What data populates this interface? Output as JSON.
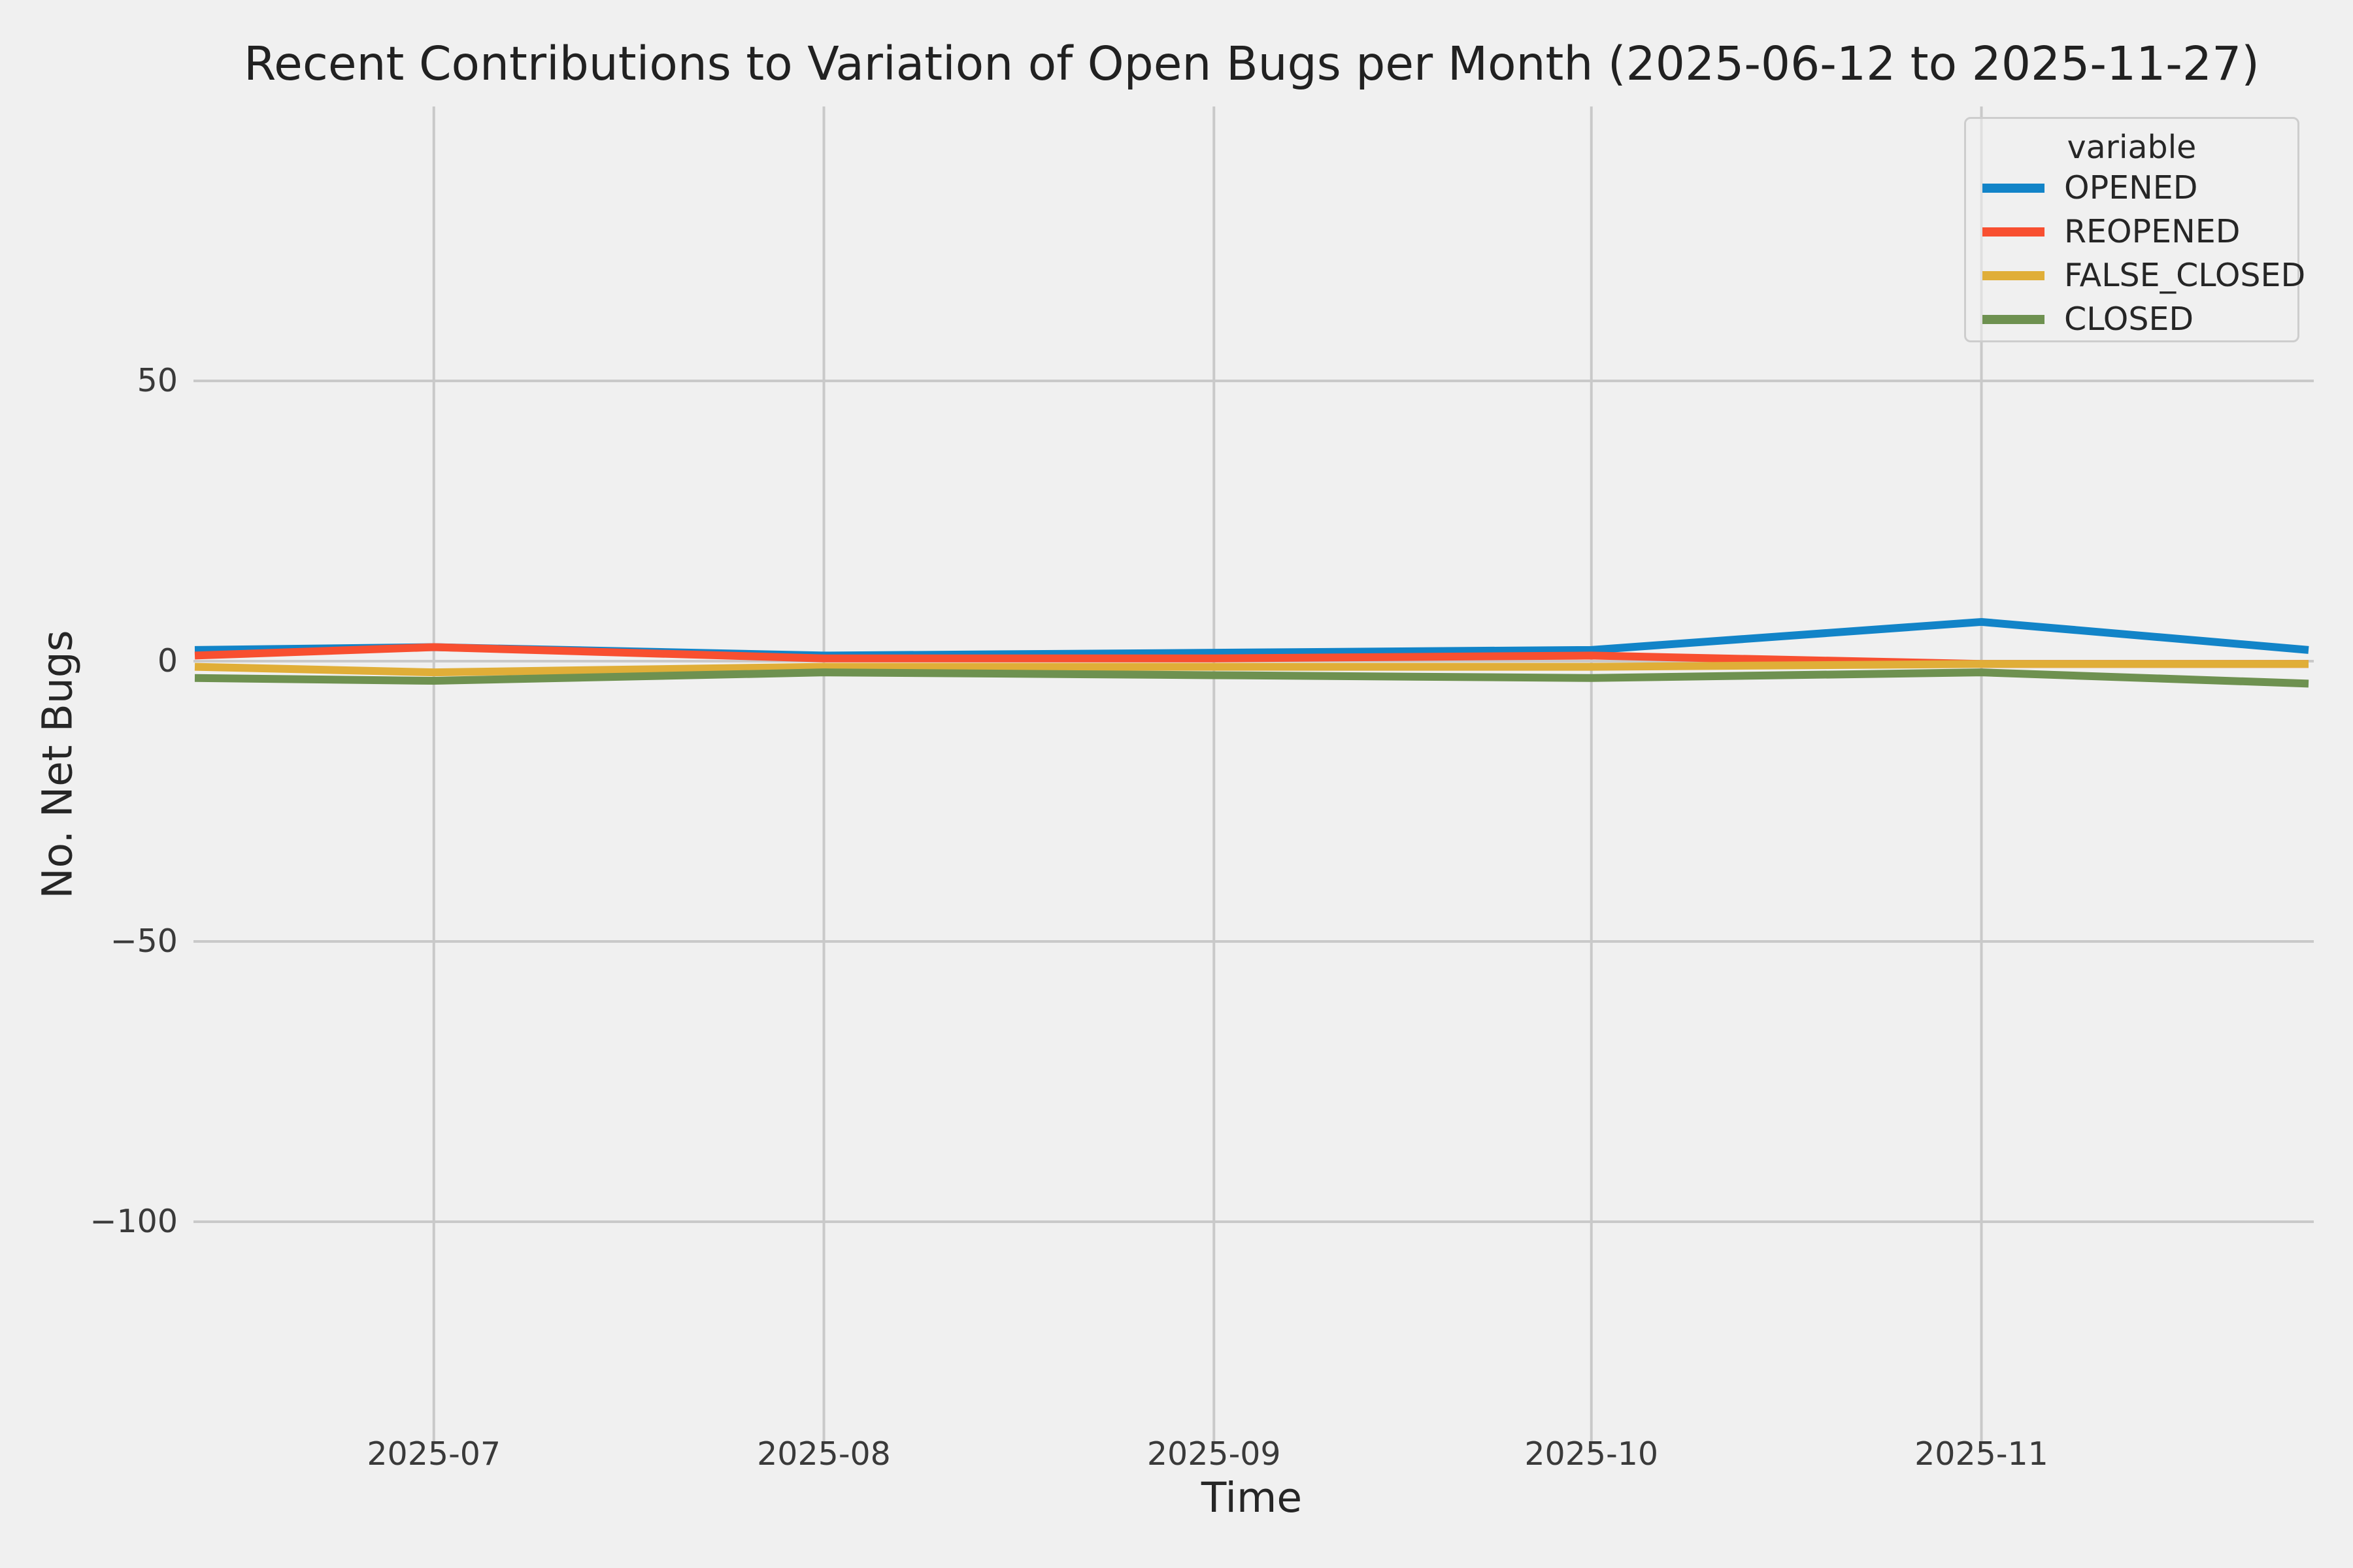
{
  "title": "Recent Contributions to Variation of Open Bugs per Month (2025-06-12 to 2025-11-27)",
  "colors": {
    "background": "#f0f0f0",
    "grid": "#c9c9c9",
    "text": "#262626",
    "tick_text": "#3a3a3a",
    "opened": "#1284c8",
    "reopened": "#f84f30",
    "false_closed": "#e0ae38",
    "closed": "#6e9150"
  },
  "chart_data": {
    "type": "line",
    "title": "Recent Contributions to Variation of Open Bugs per Month (2025-06-12 to 2025-11-27)",
    "xlabel": "Time",
    "ylabel": "No. Net Bugs",
    "legend_title": "variable",
    "legend_position": "upper right",
    "grid": true,
    "x_dates": [
      "2025-06-12",
      "2025-07-01",
      "2025-08-01",
      "2025-09-01",
      "2025-10-01",
      "2025-11-01",
      "2025-11-27"
    ],
    "x_days": [
      0,
      19,
      50,
      81,
      111,
      142,
      168
    ],
    "x_ticks": [
      {
        "label": "2025-07",
        "day": 19
      },
      {
        "label": "2025-08",
        "day": 50
      },
      {
        "label": "2025-09",
        "day": 81
      },
      {
        "label": "2025-10",
        "day": 111
      },
      {
        "label": "2025-11",
        "day": 142
      }
    ],
    "y_ticks": [
      50,
      0,
      -50,
      -100
    ],
    "ylim": [
      -139,
      99
    ],
    "series": [
      {
        "name": "OPENED",
        "color": "#1284c8",
        "values": [
          2,
          2.5,
          1,
          1.5,
          2,
          7,
          2
        ]
      },
      {
        "name": "REOPENED",
        "color": "#f84f30",
        "values": [
          1,
          2.5,
          0.5,
          0.5,
          1,
          -0.5,
          -0.5
        ]
      },
      {
        "name": "FALSE_CLOSED",
        "color": "#e0ae38",
        "values": [
          -1,
          -2,
          -1,
          -1,
          -1,
          -0.5,
          -0.5
        ]
      },
      {
        "name": "CLOSED",
        "color": "#6e9150",
        "values": [
          -3,
          -3.5,
          -2,
          -2.5,
          -3,
          -2,
          -4
        ]
      }
    ]
  }
}
